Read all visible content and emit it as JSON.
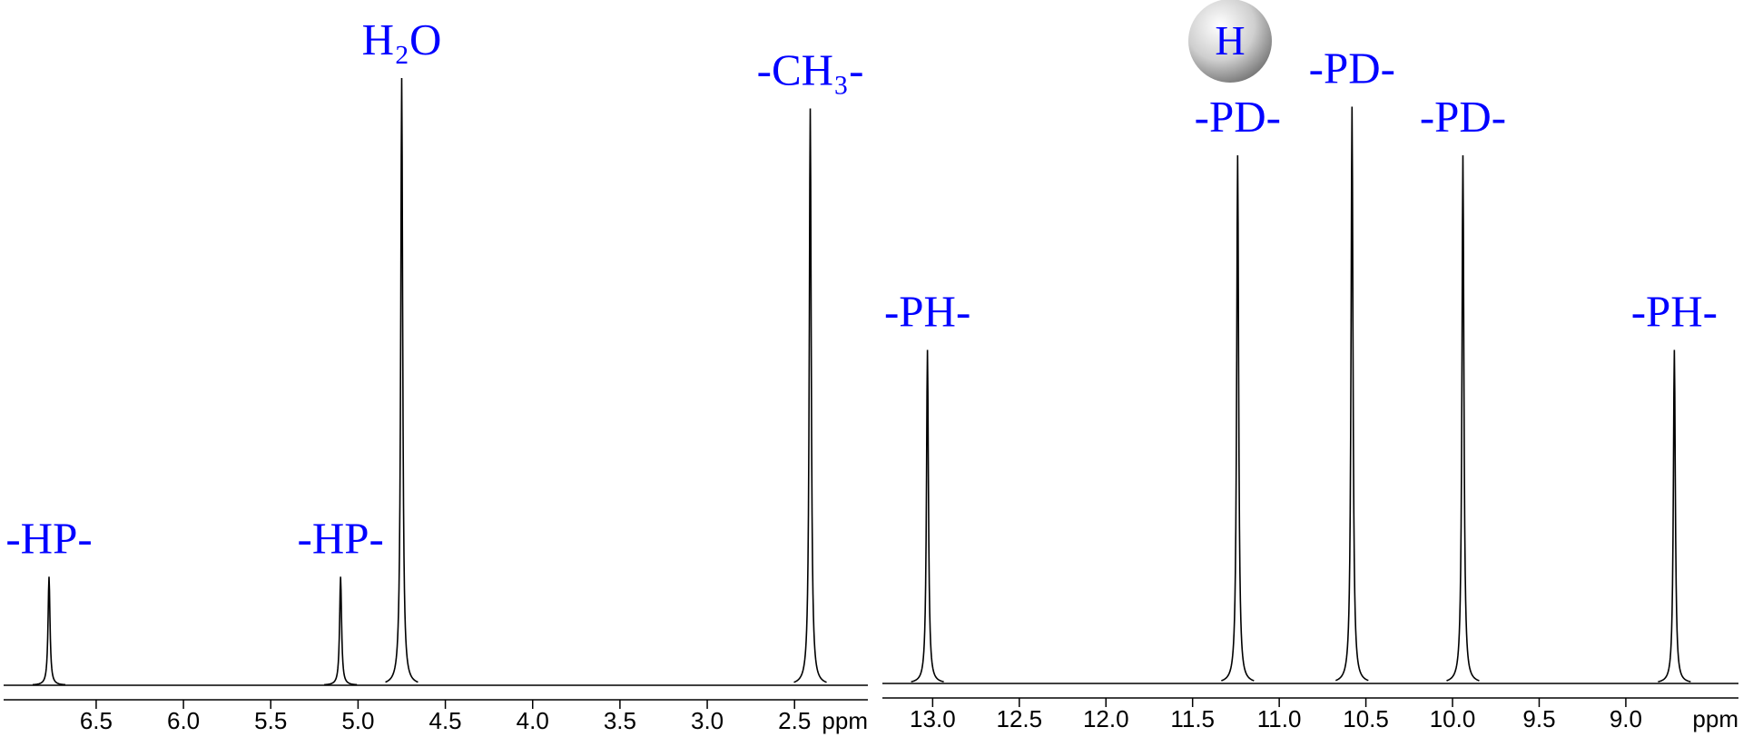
{
  "badge": "H",
  "chart_data": [
    {
      "type": "spectrum",
      "xlabel": "ppm",
      "color": "#000000",
      "label_color": "#0000ff",
      "x": [
        6.77,
        5.1,
        4.75,
        2.41
      ],
      "values": [
        18,
        18,
        100,
        95
      ],
      "labels": [
        "-HP-",
        "-HP-",
        "H₂O",
        "-CH₃-"
      ],
      "xlim": [
        7.03,
        2.08
      ],
      "ylim": [
        0,
        100
      ],
      "xticks": [
        6.5,
        {
          "value": 6,
          "label": "6.0"
        },
        5.5,
        {
          "value": 5,
          "label": "5.0"
        },
        4.5,
        {
          "value": 4,
          "label": "4.0"
        },
        3.5,
        {
          "value": 3,
          "label": "3.0"
        },
        2.5
      ]
    },
    {
      "type": "spectrum",
      "xlabel": "ppm",
      "color": "#000000",
      "label_color": "#0000ff",
      "x": [
        13.03,
        11.24,
        10.58,
        9.94,
        8.72
      ],
      "values": [
        55,
        87,
        95,
        87,
        55
      ],
      "labels": [
        "-PH-",
        "-PD-",
        "-PD-",
        "-PD-",
        "-PH-"
      ],
      "xlim": [
        13.29,
        8.35
      ],
      "ylim": [
        0,
        100
      ],
      "xticks": [
        {
          "value": 13,
          "label": "13.0"
        },
        12.5,
        {
          "value": 12,
          "label": "12.0"
        },
        11.5,
        {
          "value": 11,
          "label": "11.0"
        },
        10.5,
        {
          "value": 10,
          "label": "10.0"
        },
        9.5,
        {
          "value": 9,
          "label": "9.0"
        }
      ]
    }
  ]
}
